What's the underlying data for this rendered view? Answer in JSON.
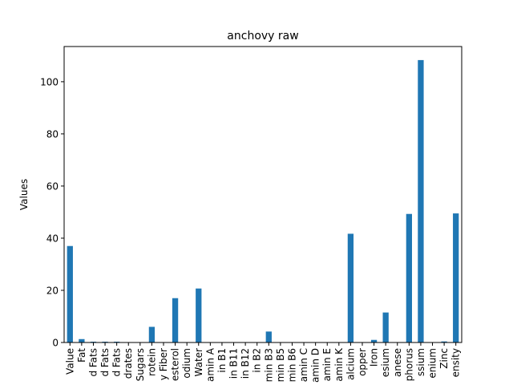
{
  "chart_data": {
    "type": "bar",
    "title": "anchovy raw",
    "xlabel": "",
    "ylabel": "Values",
    "ylim": [
      0,
      113.5
    ],
    "yticks": [
      0,
      20,
      40,
      60,
      80,
      100
    ],
    "categories": [
      "Value",
      "Fat",
      "d Fats",
      "d Fats",
      "d Fats",
      "drates",
      "Sugars",
      "rotein",
      "y Fiber",
      "esterol",
      "odium",
      "Water",
      "amin A",
      "in B1",
      "in B11",
      "in B12",
      "in B2",
      "min B3",
      "min B5",
      "min B6",
      "amin C",
      "amin D",
      "amin E",
      "amin K",
      "alcium",
      "opper",
      "Iron",
      "esium",
      "anese",
      "phorus",
      "ssium",
      "enium",
      "Zinc",
      "ensity"
    ],
    "values": [
      37,
      1.3,
      0.3,
      0.3,
      0.3,
      0,
      0,
      6,
      0,
      17,
      0,
      20.7,
      0,
      0,
      0,
      0,
      0,
      4.2,
      0,
      0,
      0,
      0,
      0,
      0,
      41.7,
      0,
      1,
      11.5,
      0,
      49.3,
      108.3,
      0,
      0.4,
      49.5
    ],
    "bar_color": "#1f77b4",
    "grid": false,
    "legend": "none"
  }
}
